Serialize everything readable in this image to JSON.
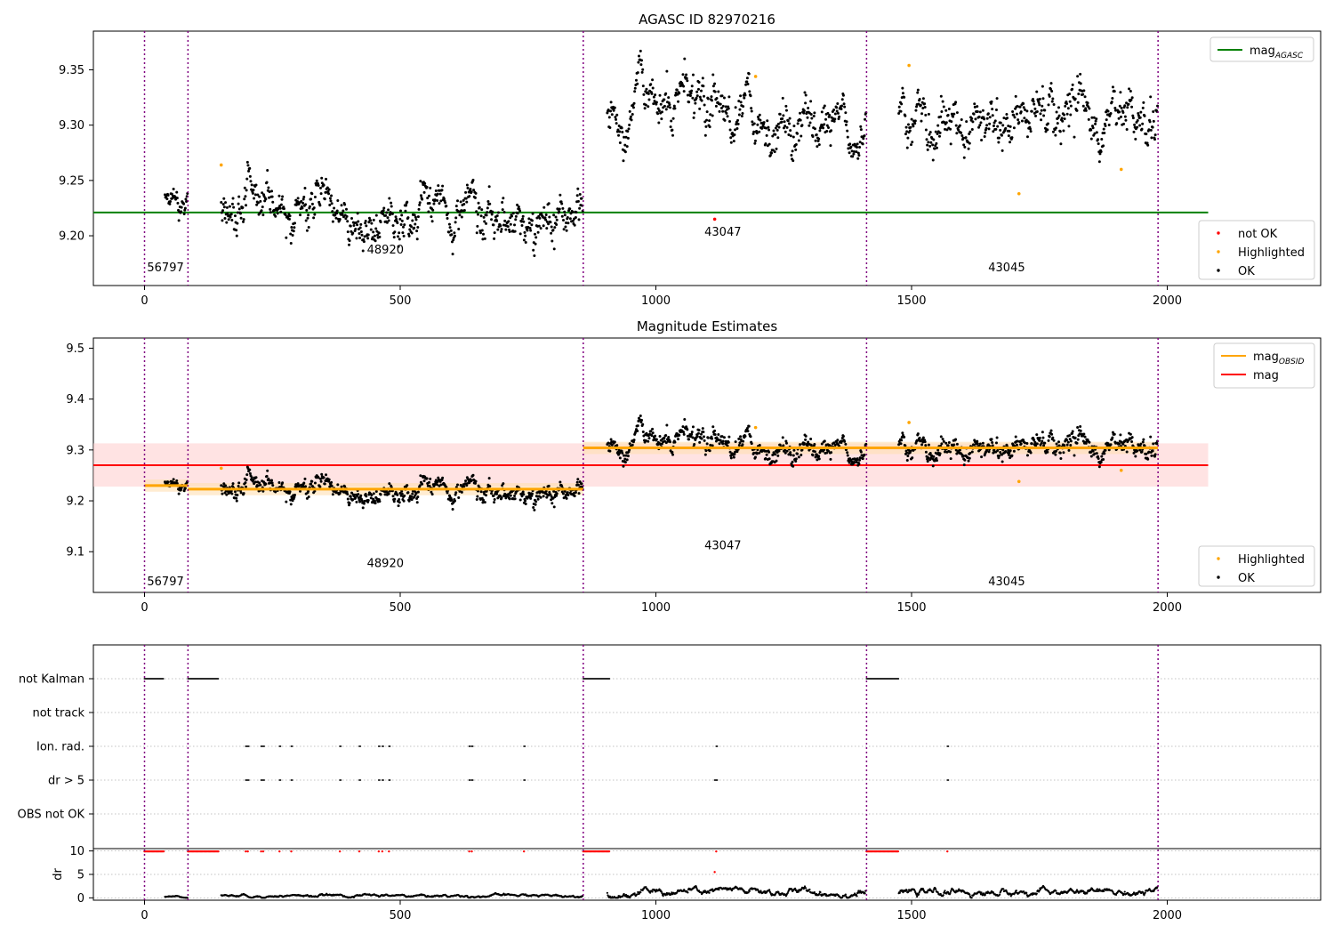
{
  "colors": {
    "ok": "#000000",
    "not_ok": "#ff0000",
    "highlighted": "#ffa500",
    "agasc_line": "#008000",
    "obs_line": "#ffa500",
    "mag_line": "#ff0000",
    "mag_band": "#ffcccc",
    "obs_band": "#ffe0b3",
    "vline": "#800080",
    "grid": "#b0b0b0"
  },
  "obsid_boundaries": [
    0,
    85,
    858,
    1412,
    1982
  ],
  "chart_data": [
    {
      "type": "scatter",
      "title": "AGASC ID 82970216",
      "xlim": [
        -100,
        2300
      ],
      "ylim": [
        9.155,
        9.385
      ],
      "xticks": [
        0,
        500,
        1000,
        1500,
        2000
      ],
      "yticks": [
        9.2,
        9.25,
        9.3,
        9.35
      ],
      "ytick_labels": [
        "9.20",
        "9.25",
        "9.30",
        "9.35"
      ],
      "grid": false,
      "reference_line": {
        "name": "mag_AGASC",
        "label_main": "mag",
        "label_sub": "AGASC",
        "y": 9.221,
        "x": [
          -100,
          2080
        ],
        "color": "#008000"
      },
      "segments": [
        {
          "x0": 40,
          "x1": 85,
          "mean": 9.23,
          "sd": 0.008
        },
        {
          "x0": 150,
          "x1": 858,
          "mean": 9.223,
          "sd": 0.014
        },
        {
          "x0": 905,
          "x1": 1412,
          "mean": 9.305,
          "sd": 0.015
        },
        {
          "x0": 1475,
          "x1": 1982,
          "mean": 9.303,
          "sd": 0.016
        }
      ],
      "highlighted": [
        [
          150,
          9.264
        ],
        [
          1195,
          9.344
        ],
        [
          1495,
          9.354
        ],
        [
          1710,
          9.238
        ],
        [
          1910,
          9.26
        ]
      ],
      "not_ok": [
        [
          1115,
          9.215
        ]
      ],
      "annotations": [
        {
          "text": "56797",
          "x": 5,
          "y": 9.168
        },
        {
          "text": "48920",
          "x": 435,
          "y": 9.184
        },
        {
          "text": "43047",
          "x": 1095,
          "y": 9.2
        },
        {
          "text": "43045",
          "x": 1650,
          "y": 9.168
        }
      ],
      "legend": {
        "upper_right": [
          {
            "label": "mag",
            "sub": "AGASC",
            "type": "line",
            "color": "#008000"
          }
        ],
        "lower_right": [
          {
            "label": "not OK",
            "type": "marker",
            "color": "#ff0000"
          },
          {
            "label": "Highlighted",
            "type": "marker",
            "color": "#ffa500"
          },
          {
            "label": "OK",
            "type": "marker",
            "color": "#000000"
          }
        ]
      }
    },
    {
      "type": "scatter",
      "title": "Magnitude Estimates",
      "xlim": [
        -100,
        2300
      ],
      "ylim": [
        9.02,
        9.52
      ],
      "xticks": [
        0,
        500,
        1000,
        1500,
        2000
      ],
      "yticks": [
        9.1,
        9.2,
        9.3,
        9.4,
        9.5
      ],
      "ytick_labels": [
        "9.1",
        "9.2",
        "9.3",
        "9.4",
        "9.5"
      ],
      "grid": false,
      "mag_band": {
        "y0": 9.228,
        "y1": 9.313,
        "x": [
          -100,
          2080
        ]
      },
      "mag_line": {
        "name": "mag",
        "y": 9.27,
        "x": [
          -100,
          2080
        ]
      },
      "obsid_mags": [
        {
          "x0": 0,
          "x1": 85,
          "y": 9.23
        },
        {
          "x0": 85,
          "x1": 858,
          "y": 9.223
        },
        {
          "x0": 858,
          "x1": 1412,
          "y": 9.304
        },
        {
          "x0": 1412,
          "x1": 1982,
          "y": 9.304
        }
      ],
      "annotations": [
        {
          "text": "56797",
          "x": 5,
          "y": 9.034
        },
        {
          "text": "48920",
          "x": 435,
          "y": 9.07
        },
        {
          "text": "43047",
          "x": 1095,
          "y": 9.105
        },
        {
          "text": "43045",
          "x": 1650,
          "y": 9.034
        }
      ],
      "legend": {
        "upper_right": [
          {
            "label": "mag",
            "sub": "OBSID",
            "type": "line",
            "color": "#ffa500"
          },
          {
            "label": "mag",
            "type": "line",
            "color": "#ff0000"
          }
        ],
        "lower_right": [
          {
            "label": "Highlighted",
            "type": "marker",
            "color": "#ffa500"
          },
          {
            "label": "OK",
            "type": "marker",
            "color": "#000000"
          }
        ]
      }
    },
    {
      "type": "scatter",
      "xlim": [
        -100,
        2300
      ],
      "category_rows": [
        "not Kalman",
        "not track",
        "Ion. rad.",
        "dr > 5",
        "OBS not OK"
      ],
      "flag_ranges": {
        "not Kalman": [
          [
            0,
            38
          ],
          [
            85,
            145
          ],
          [
            858,
            910
          ],
          [
            1412,
            1475
          ]
        ],
        "not track": [],
        "Ion. rad.": [
          198,
          202,
          228,
          232,
          264,
          287,
          382,
          420,
          458,
          465,
          478,
          635,
          640,
          742,
          1118,
          1570
        ],
        "dr > 5": [
          198,
          202,
          228,
          232,
          264,
          287,
          382,
          420,
          458,
          465,
          478,
          635,
          640,
          742,
          1115,
          1118,
          1570
        ],
        "OBS not OK": []
      },
      "dr_axis": {
        "ylabel": "dr",
        "ylim": [
          -0.5,
          10.5
        ],
        "yticks": [
          0,
          5,
          10
        ],
        "capped": [
          [
            0,
            38
          ],
          [
            85,
            145
          ],
          [
            858,
            910
          ],
          [
            1412,
            1475
          ],
          198,
          202,
          228,
          232,
          264,
          287,
          382,
          420,
          458,
          465,
          478,
          635,
          640,
          742,
          1118,
          1570
        ],
        "outlier": [
          1115,
          5.5
        ],
        "baseline": [
          {
            "x0": 40,
            "x1": 85,
            "mean": 0.25
          },
          {
            "x0": 150,
            "x1": 858,
            "mean": 0.45
          },
          {
            "x0": 905,
            "x1": 1412,
            "mean": 1.2
          },
          {
            "x0": 1475,
            "x1": 1982,
            "mean": 1.1
          }
        ]
      },
      "xticks": [
        0,
        500,
        1000,
        1500,
        2000
      ]
    }
  ]
}
